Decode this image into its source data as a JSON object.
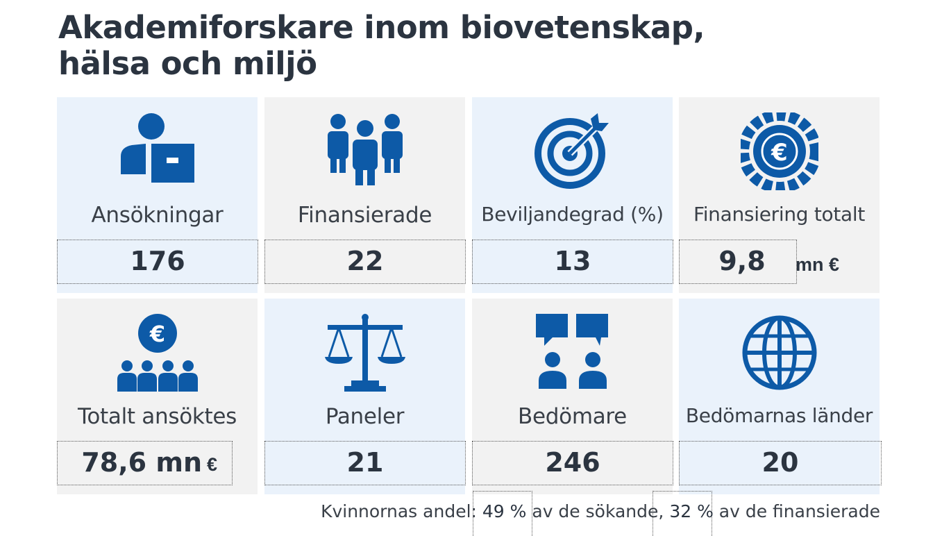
{
  "title": {
    "line1": "Akademiforskare inom biovetenskap,",
    "line2": "hälsa och miljö"
  },
  "tiles": [
    {
      "icon": "person-with-application-icon",
      "label": "Ansökningar",
      "value": "176",
      "unit": ""
    },
    {
      "icon": "people-group-icon",
      "label": "Finansierade",
      "value": "22",
      "unit": ""
    },
    {
      "icon": "target-icon",
      "label": "Beviljandegrad (%)",
      "value": "13",
      "unit": ""
    },
    {
      "icon": "euro-coin-icon",
      "label": "Finansiering totalt",
      "value": "9,8",
      "unit": "mn €"
    },
    {
      "icon": "euro-audience-icon",
      "label": "Totalt ansöktes",
      "value": "78,6 mn",
      "unit": "€"
    },
    {
      "icon": "scales-icon",
      "label": "Paneler",
      "value": "21",
      "unit": ""
    },
    {
      "icon": "reviewers-chat-icon",
      "label": "Bedömare",
      "value": "246",
      "unit": ""
    },
    {
      "icon": "globe-icon",
      "label": "Bedömarnas länder",
      "value": "20",
      "unit": ""
    }
  ],
  "footer": {
    "prefix": "Kvinnornas andel:",
    "applicants_value": "49 %",
    "applicants_text": "av de sökande,",
    "funded_value": "32 %",
    "funded_text": "av de finansierade"
  },
  "colors": {
    "icon": "#0d5aa7",
    "text": "#2b3440",
    "tile_blue": "#eaf2fb",
    "tile_gray": "#f2f2f2"
  }
}
